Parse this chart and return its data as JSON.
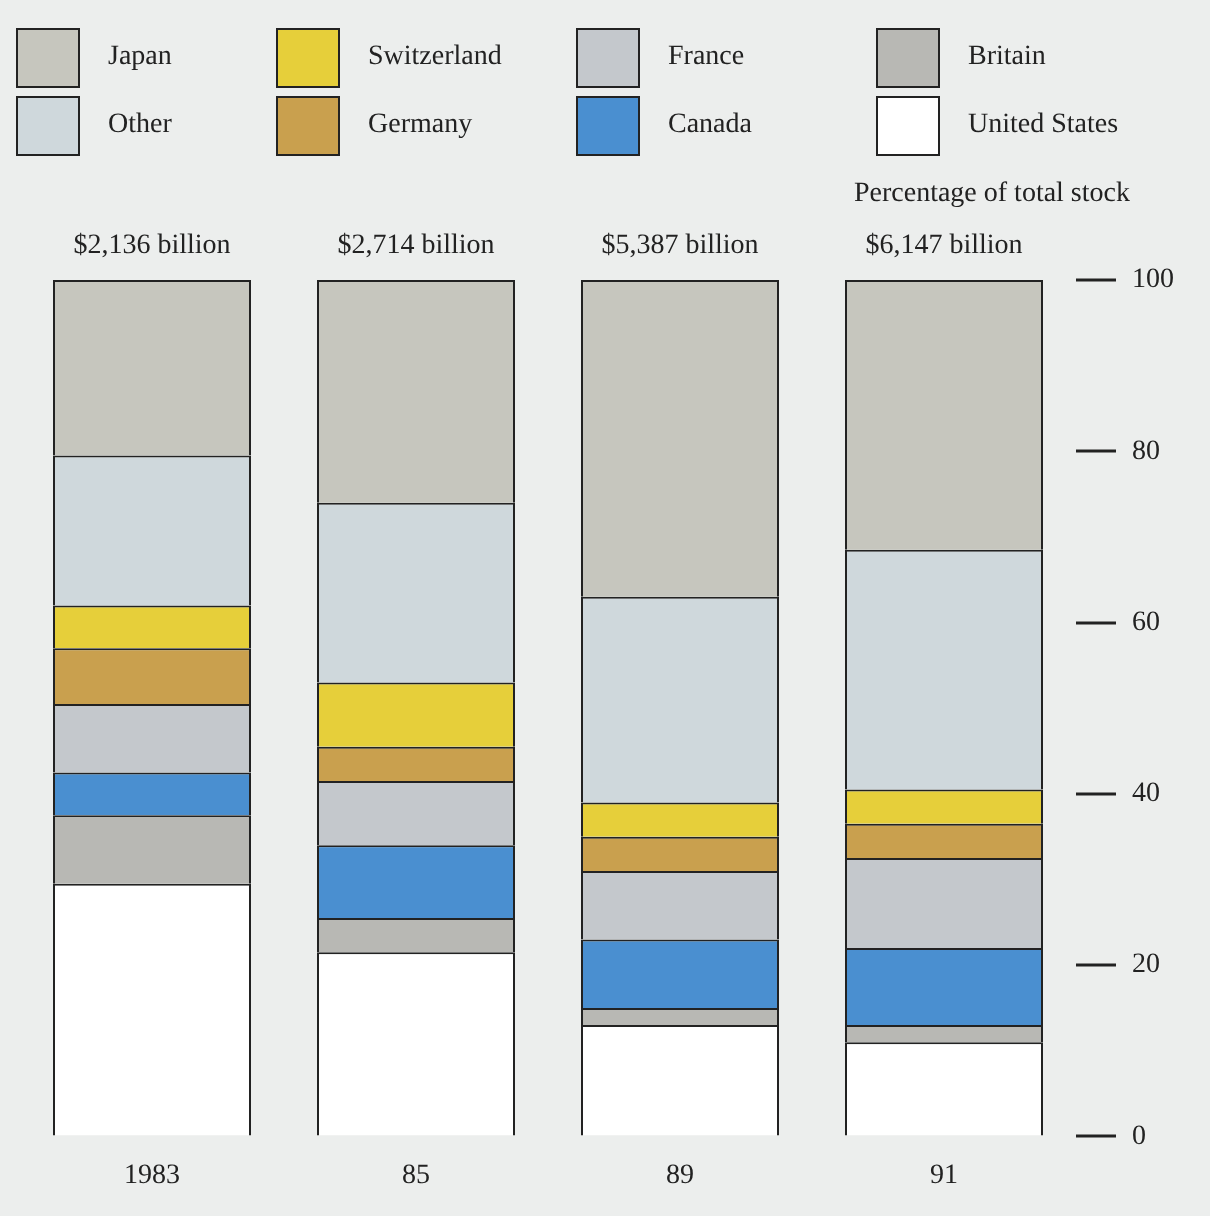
{
  "chart_data": {
    "type": "bar",
    "stacked": true,
    "ylabel": "Percentage of total stock",
    "categories": [
      "1983",
      "85",
      "89",
      "91"
    ],
    "series": [
      {
        "name": "United States",
        "color": "#ffffff",
        "values": [
          29.5,
          21.5,
          13,
          11
        ]
      },
      {
        "name": "Britain",
        "color": "#b8b8b4",
        "values": [
          8,
          4,
          2,
          2
        ]
      },
      {
        "name": "Canada",
        "color": "#4a8fd0",
        "values": [
          5,
          8.5,
          8,
          9
        ]
      },
      {
        "name": "France",
        "color": "#c4c8cc",
        "values": [
          8,
          7.5,
          8,
          10.5
        ]
      },
      {
        "name": "Germany",
        "color": "#c9a04e",
        "values": [
          6.5,
          4,
          4,
          4
        ]
      },
      {
        "name": "Switzerland",
        "color": "#e6cf3a",
        "values": [
          5,
          7.5,
          4,
          4
        ]
      },
      {
        "name": "Other",
        "color": "#cfd8dc",
        "values": [
          17.5,
          21,
          24,
          28
        ]
      },
      {
        "name": "Japan",
        "color": "#c6c6be",
        "values": [
          20.5,
          26,
          37,
          31.5
        ]
      }
    ],
    "annotations": [
      {
        "text": "$2,136 billion",
        "x": "1983",
        "y": 100
      },
      {
        "text": "$2,714 billion",
        "x": "85",
        "y": 100
      },
      {
        "text": "$5,387 billion",
        "x": "89",
        "y": 100
      },
      {
        "text": "$6,147 billion",
        "x": "91",
        "y": 100
      }
    ],
    "ylim": [
      0,
      100
    ],
    "yticks": [
      0,
      20,
      40,
      60,
      80,
      100
    ],
    "grid": false,
    "legend": "top"
  }
}
